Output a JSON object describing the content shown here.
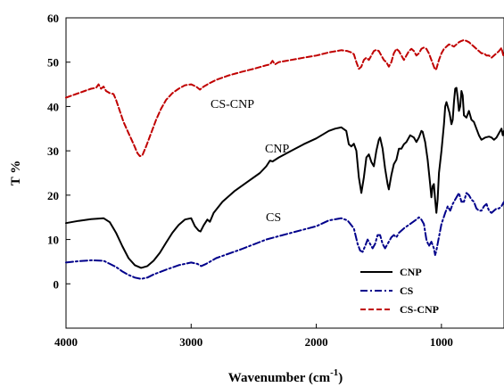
{
  "chart_data": {
    "type": "line",
    "xlabel": "Wavenumber (cm",
    "xlabel_sup": "-1",
    "xlabel_close": ")",
    "ylabel": "T %",
    "xlim": [
      4000,
      500
    ],
    "ylim": [
      -10,
      60
    ],
    "x_ticks": [
      4000,
      3000,
      2000,
      1000
    ],
    "y_ticks": [
      0,
      10,
      20,
      30,
      40,
      50,
      60
    ],
    "grid": false,
    "legend_position": "bottom-right",
    "curve_labels": [
      "CS-CNP",
      "CNP",
      "CS"
    ],
    "series": [
      {
        "name": "CNP",
        "color": "#000000",
        "dash": "solid",
        "points": [
          [
            4000,
            13.7
          ],
          [
            3900,
            14.2
          ],
          [
            3800,
            14.6
          ],
          [
            3700,
            14.8
          ],
          [
            3650,
            13.9
          ],
          [
            3600,
            11.5
          ],
          [
            3550,
            8.5
          ],
          [
            3500,
            5.8
          ],
          [
            3450,
            4.2
          ],
          [
            3400,
            3.6
          ],
          [
            3350,
            4.0
          ],
          [
            3300,
            5.2
          ],
          [
            3250,
            7.0
          ],
          [
            3200,
            9.3
          ],
          [
            3150,
            11.5
          ],
          [
            3100,
            13.3
          ],
          [
            3050,
            14.5
          ],
          [
            3000,
            14.8
          ],
          [
            2970,
            13.0
          ],
          [
            2940,
            12.0
          ],
          [
            2925,
            11.8
          ],
          [
            2900,
            13.2
          ],
          [
            2870,
            14.5
          ],
          [
            2850,
            14.0
          ],
          [
            2820,
            16.0
          ],
          [
            2750,
            18.5
          ],
          [
            2650,
            21.0
          ],
          [
            2550,
            23.0
          ],
          [
            2450,
            25.0
          ],
          [
            2400,
            26.5
          ],
          [
            2370,
            27.8
          ],
          [
            2350,
            27.6
          ],
          [
            2300,
            28.5
          ],
          [
            2200,
            30.0
          ],
          [
            2100,
            31.5
          ],
          [
            2000,
            32.8
          ],
          [
            1900,
            34.5
          ],
          [
            1850,
            35.0
          ],
          [
            1800,
            35.3
          ],
          [
            1760,
            34.5
          ],
          [
            1740,
            31.5
          ],
          [
            1720,
            31.0
          ],
          [
            1700,
            31.6
          ],
          [
            1680,
            30.0
          ],
          [
            1660,
            24.0
          ],
          [
            1640,
            20.5
          ],
          [
            1620,
            24.0
          ],
          [
            1600,
            28.5
          ],
          [
            1580,
            29.2
          ],
          [
            1560,
            27.5
          ],
          [
            1540,
            26.5
          ],
          [
            1520,
            30.0
          ],
          [
            1500,
            32.5
          ],
          [
            1490,
            33.0
          ],
          [
            1470,
            30.5
          ],
          [
            1450,
            26.0
          ],
          [
            1430,
            22.5
          ],
          [
            1420,
            21.3
          ],
          [
            1400,
            24.5
          ],
          [
            1380,
            27.0
          ],
          [
            1360,
            28.0
          ],
          [
            1340,
            30.5
          ],
          [
            1320,
            30.5
          ],
          [
            1300,
            31.5
          ],
          [
            1280,
            32.0
          ],
          [
            1260,
            33.0
          ],
          [
            1250,
            33.5
          ],
          [
            1220,
            33.0
          ],
          [
            1200,
            32.0
          ],
          [
            1180,
            33.0
          ],
          [
            1160,
            34.5
          ],
          [
            1150,
            34.3
          ],
          [
            1130,
            32.0
          ],
          [
            1110,
            28.0
          ],
          [
            1090,
            22.5
          ],
          [
            1080,
            19.5
          ],
          [
            1070,
            22.0
          ],
          [
            1060,
            22.5
          ],
          [
            1050,
            19.0
          ],
          [
            1040,
            16.0
          ],
          [
            1030,
            19.0
          ],
          [
            1020,
            25.0
          ],
          [
            1000,
            30.0
          ],
          [
            980,
            36.0
          ],
          [
            970,
            40.0
          ],
          [
            960,
            41.0
          ],
          [
            950,
            40.0
          ],
          [
            935,
            38.5
          ],
          [
            920,
            36.0
          ],
          [
            910,
            37.0
          ],
          [
            900,
            41.0
          ],
          [
            890,
            44.0
          ],
          [
            880,
            44.2
          ],
          [
            870,
            42.0
          ],
          [
            860,
            39.0
          ],
          [
            850,
            40.0
          ],
          [
            840,
            43.5
          ],
          [
            830,
            42.5
          ],
          [
            820,
            38.0
          ],
          [
            800,
            37.5
          ],
          [
            780,
            39.0
          ],
          [
            760,
            37.0
          ],
          [
            740,
            36.5
          ],
          [
            720,
            35.0
          ],
          [
            700,
            33.5
          ],
          [
            680,
            32.5
          ],
          [
            650,
            33.0
          ],
          [
            620,
            33.2
          ],
          [
            600,
            33.0
          ],
          [
            580,
            32.5
          ],
          [
            560,
            33.0
          ],
          [
            540,
            34.0
          ],
          [
            520,
            35.0
          ],
          [
            510,
            33.5
          ],
          [
            500,
            34.5
          ]
        ]
      },
      {
        "name": "CS",
        "color": "#00008b",
        "dash": "dashdot",
        "points": [
          [
            4000,
            4.8
          ],
          [
            3900,
            5.1
          ],
          [
            3800,
            5.3
          ],
          [
            3700,
            5.2
          ],
          [
            3650,
            4.5
          ],
          [
            3600,
            3.8
          ],
          [
            3550,
            2.8
          ],
          [
            3500,
            2.0
          ],
          [
            3450,
            1.4
          ],
          [
            3400,
            1.1
          ],
          [
            3350,
            1.4
          ],
          [
            3300,
            2.1
          ],
          [
            3200,
            3.2
          ],
          [
            3100,
            4.2
          ],
          [
            3000,
            4.8
          ],
          [
            2950,
            4.5
          ],
          [
            2920,
            4.0
          ],
          [
            2880,
            4.5
          ],
          [
            2800,
            5.8
          ],
          [
            2600,
            7.8
          ],
          [
            2400,
            10.0
          ],
          [
            2200,
            11.5
          ],
          [
            2000,
            13.0
          ],
          [
            1900,
            14.3
          ],
          [
            1800,
            14.8
          ],
          [
            1750,
            14.3
          ],
          [
            1700,
            12.5
          ],
          [
            1670,
            9.0
          ],
          [
            1650,
            7.5
          ],
          [
            1630,
            7.2
          ],
          [
            1610,
            8.5
          ],
          [
            1590,
            10.0
          ],
          [
            1570,
            9.0
          ],
          [
            1550,
            8.0
          ],
          [
            1530,
            9.0
          ],
          [
            1510,
            11.0
          ],
          [
            1490,
            11.0
          ],
          [
            1470,
            9.0
          ],
          [
            1450,
            8.0
          ],
          [
            1420,
            9.5
          ],
          [
            1400,
            10.5
          ],
          [
            1380,
            11.0
          ],
          [
            1360,
            10.5
          ],
          [
            1340,
            11.5
          ],
          [
            1300,
            12.5
          ],
          [
            1250,
            13.5
          ],
          [
            1200,
            14.5
          ],
          [
            1180,
            15.0
          ],
          [
            1160,
            14.5
          ],
          [
            1140,
            13.5
          ],
          [
            1120,
            10.0
          ],
          [
            1100,
            8.5
          ],
          [
            1080,
            9.5
          ],
          [
            1060,
            8.0
          ],
          [
            1050,
            6.5
          ],
          [
            1040,
            7.5
          ],
          [
            1030,
            9.0
          ],
          [
            1000,
            13.5
          ],
          [
            970,
            16.0
          ],
          [
            950,
            17.5
          ],
          [
            930,
            16.5
          ],
          [
            910,
            18.0
          ],
          [
            890,
            19.0
          ],
          [
            870,
            20.0
          ],
          [
            860,
            20.5
          ],
          [
            840,
            18.5
          ],
          [
            820,
            18.5
          ],
          [
            800,
            20.5
          ],
          [
            780,
            20.0
          ],
          [
            760,
            19.0
          ],
          [
            740,
            18.5
          ],
          [
            720,
            17.0
          ],
          [
            700,
            16.5
          ],
          [
            680,
            16.5
          ],
          [
            660,
            17.5
          ],
          [
            640,
            18.0
          ],
          [
            620,
            16.5
          ],
          [
            600,
            16.0
          ],
          [
            580,
            16.5
          ],
          [
            560,
            17.0
          ],
          [
            540,
            17.0
          ],
          [
            520,
            17.5
          ],
          [
            510,
            18.0
          ],
          [
            500,
            18.5
          ]
        ]
      },
      {
        "name": "CS-CNP",
        "color": "#c00000",
        "dash": "dashed",
        "points": [
          [
            4000,
            42.0
          ],
          [
            3950,
            42.5
          ],
          [
            3900,
            43.0
          ],
          [
            3850,
            43.5
          ],
          [
            3800,
            44.0
          ],
          [
            3760,
            44.2
          ],
          [
            3740,
            45.0
          ],
          [
            3720,
            44.0
          ],
          [
            3700,
            44.5
          ],
          [
            3680,
            43.5
          ],
          [
            3650,
            43.0
          ],
          [
            3620,
            42.8
          ],
          [
            3600,
            41.5
          ],
          [
            3570,
            39.0
          ],
          [
            3540,
            36.5
          ],
          [
            3500,
            34.0
          ],
          [
            3460,
            31.5
          ],
          [
            3430,
            29.5
          ],
          [
            3410,
            28.8
          ],
          [
            3390,
            29.0
          ],
          [
            3360,
            31.0
          ],
          [
            3320,
            34.0
          ],
          [
            3280,
            37.0
          ],
          [
            3240,
            39.5
          ],
          [
            3200,
            41.5
          ],
          [
            3150,
            43.0
          ],
          [
            3100,
            44.0
          ],
          [
            3050,
            44.8
          ],
          [
            3000,
            45.0
          ],
          [
            2960,
            44.5
          ],
          [
            2930,
            43.8
          ],
          [
            2900,
            44.5
          ],
          [
            2850,
            45.3
          ],
          [
            2800,
            46.0
          ],
          [
            2700,
            47.0
          ],
          [
            2600,
            47.8
          ],
          [
            2500,
            48.5
          ],
          [
            2400,
            49.3
          ],
          [
            2370,
            49.5
          ],
          [
            2350,
            50.3
          ],
          [
            2330,
            49.5
          ],
          [
            2300,
            50.0
          ],
          [
            2200,
            50.5
          ],
          [
            2100,
            51.0
          ],
          [
            2000,
            51.5
          ],
          [
            1900,
            52.2
          ],
          [
            1800,
            52.7
          ],
          [
            1750,
            52.5
          ],
          [
            1720,
            52.2
          ],
          [
            1700,
            51.8
          ],
          [
            1680,
            50.0
          ],
          [
            1660,
            48.5
          ],
          [
            1640,
            49.0
          ],
          [
            1620,
            50.5
          ],
          [
            1600,
            51.0
          ],
          [
            1580,
            50.5
          ],
          [
            1560,
            51.5
          ],
          [
            1540,
            52.5
          ],
          [
            1520,
            52.8
          ],
          [
            1500,
            52.5
          ],
          [
            1480,
            51.5
          ],
          [
            1460,
            50.5
          ],
          [
            1440,
            50.0
          ],
          [
            1420,
            49.0
          ],
          [
            1400,
            50.0
          ],
          [
            1380,
            52.0
          ],
          [
            1360,
            53.0
          ],
          [
            1340,
            52.5
          ],
          [
            1320,
            51.5
          ],
          [
            1300,
            50.5
          ],
          [
            1280,
            51.5
          ],
          [
            1260,
            52.5
          ],
          [
            1240,
            53.0
          ],
          [
            1220,
            52.5
          ],
          [
            1200,
            51.5
          ],
          [
            1180,
            52.0
          ],
          [
            1160,
            53.0
          ],
          [
            1140,
            53.3
          ],
          [
            1120,
            53.0
          ],
          [
            1100,
            52.0
          ],
          [
            1080,
            50.5
          ],
          [
            1060,
            49.0
          ],
          [
            1050,
            48.3
          ],
          [
            1040,
            48.5
          ],
          [
            1020,
            50.5
          ],
          [
            1000,
            52.0
          ],
          [
            980,
            53.0
          ],
          [
            960,
            53.5
          ],
          [
            940,
            54.0
          ],
          [
            920,
            53.8
          ],
          [
            900,
            53.5
          ],
          [
            880,
            54.0
          ],
          [
            860,
            54.5
          ],
          [
            840,
            54.8
          ],
          [
            820,
            55.0
          ],
          [
            800,
            54.8
          ],
          [
            780,
            54.5
          ],
          [
            760,
            54.0
          ],
          [
            740,
            53.5
          ],
          [
            720,
            53.0
          ],
          [
            700,
            52.5
          ],
          [
            680,
            52.0
          ],
          [
            660,
            52.0
          ],
          [
            640,
            51.5
          ],
          [
            620,
            51.5
          ],
          [
            600,
            51.0
          ],
          [
            580,
            51.5
          ],
          [
            560,
            52.0
          ],
          [
            540,
            52.5
          ],
          [
            520,
            53.2
          ],
          [
            510,
            52.0
          ],
          [
            500,
            51.0
          ]
        ]
      }
    ]
  }
}
